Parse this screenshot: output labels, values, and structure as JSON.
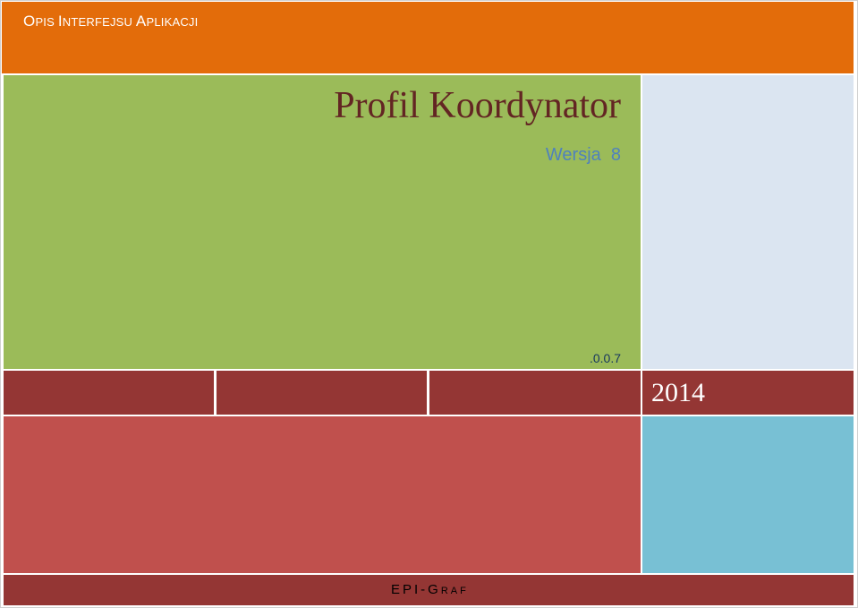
{
  "header": {
    "title_first_o": "O",
    "title_rest_pis": "PIS ",
    "title_first_i": "I",
    "title_rest_nterfejsu": "NTERFEJSU ",
    "title_first_a": "A",
    "title_rest_plikacji": "PLIKACJI"
  },
  "title_block": {
    "title": "Profil Koordynator",
    "version": "Wersja  8",
    "subversion": ".0.0.7"
  },
  "year": "2014",
  "footer": {
    "company_main": "EPI-G",
    "company_small": "RAF"
  },
  "colors": {
    "header": "#e36c0a",
    "title_block": "#9bbb59",
    "side_panel": "#dbe5f1",
    "band": "#943634",
    "red_block": "#c0504d",
    "teal_block": "#78c0d4"
  }
}
